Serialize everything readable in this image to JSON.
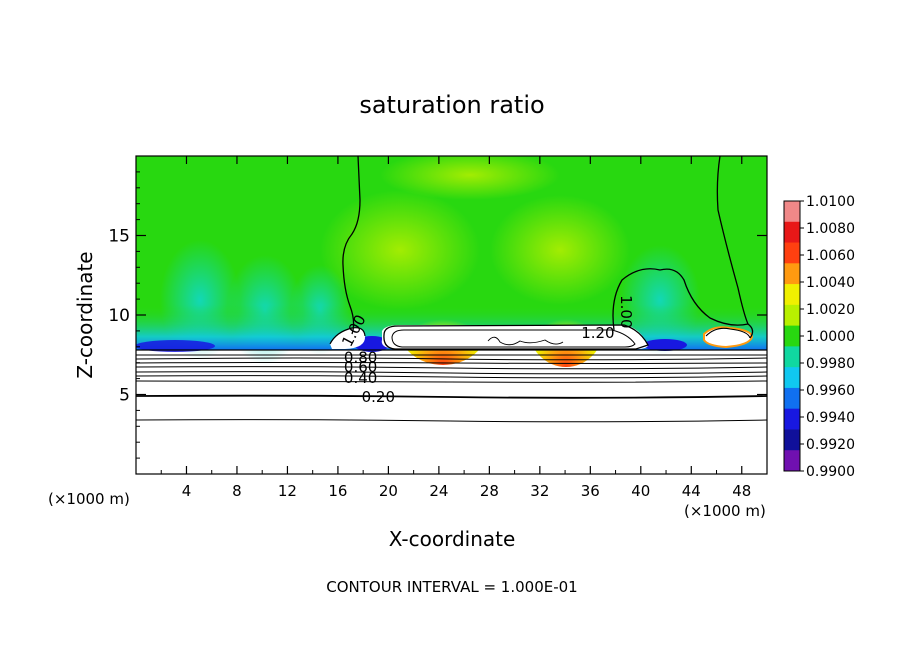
{
  "chart_data": {
    "type": "heatmap",
    "title": "saturation ratio",
    "xlabel": "X-coordinate",
    "ylabel": "Z-coordinate",
    "x_unit_left": "(×1000 m)",
    "x_unit_right": "(×1000 m)",
    "xlim": [
      0,
      50
    ],
    "ylim": [
      0,
      20
    ],
    "x_ticks": [
      4,
      8,
      12,
      16,
      20,
      24,
      28,
      32,
      36,
      40,
      44,
      48
    ],
    "y_ticks": [
      5,
      10,
      15
    ],
    "footer": "CONTOUR INTERVAL = 1.000E-01",
    "colorbar": {
      "labels": [
        "1.0100",
        "1.0080",
        "1.0060",
        "1.0040",
        "1.0020",
        "1.0000",
        "0.9980",
        "0.9960",
        "0.9940",
        "0.9920",
        "0.9900"
      ],
      "colors": [
        "#f08888",
        "#e81818",
        "#ff4010",
        "#ff9a10",
        "#f0f000",
        "#b8f000",
        "#28d810",
        "#10d8a0",
        "#10c8f0",
        "#1070f0",
        "#1818e0",
        "#10109a",
        "#7010b0"
      ]
    },
    "contour_labels": [
      {
        "text": "0.20",
        "x": 19.2,
        "z": 4.8,
        "rotate": 0
      },
      {
        "text": "0.40",
        "x": 17.8,
        "z": 6.0,
        "rotate": 0
      },
      {
        "text": "0.60",
        "x": 17.8,
        "z": 6.7,
        "rotate": 0
      },
      {
        "text": "0.80",
        "x": 17.8,
        "z": 7.3,
        "rotate": 0
      },
      {
        "text": "1.00",
        "x": 17.3,
        "z": 9.0,
        "rotate": -62
      },
      {
        "text": "1.20",
        "x": 36.6,
        "z": 8.85,
        "rotate": 0
      },
      {
        "text": "1.00",
        "x": 38.8,
        "z": 10.2,
        "rotate": 90
      }
    ]
  }
}
